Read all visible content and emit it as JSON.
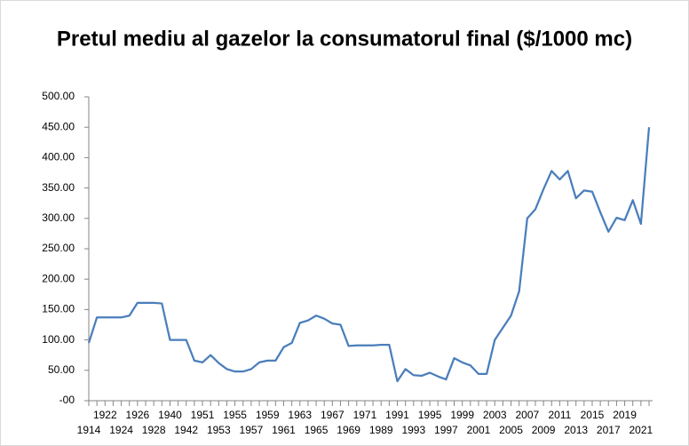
{
  "chart_data": {
    "type": "line",
    "title": "Pretul mediu al gazelor la consumatorul final ($/1000 mc)",
    "categories": [
      "1914",
      null,
      "1922",
      null,
      "1924",
      null,
      "1926",
      null,
      "1928",
      null,
      "1940",
      null,
      "1942",
      null,
      "1951",
      null,
      "1953",
      null,
      "1955",
      null,
      "1957",
      null,
      "1959",
      null,
      "1961",
      null,
      "1963",
      null,
      "1965",
      null,
      "1967",
      null,
      "1969",
      null,
      "1971",
      null,
      "1989",
      null,
      "1991",
      null,
      "1993",
      null,
      "1995",
      null,
      "1997",
      null,
      "1999",
      null,
      "2001",
      null,
      "2003",
      null,
      "2005",
      null,
      "2007",
      null,
      "2009",
      null,
      "2011",
      null,
      "2013",
      null,
      "2015",
      null,
      "2017",
      null,
      "2019",
      null,
      "2021",
      null
    ],
    "series": [
      {
        "color": "#4a7ebb",
        "values": [
          95,
          137,
          137,
          137,
          137,
          140,
          161,
          161,
          161,
          160,
          100,
          100,
          100,
          66,
          63,
          75,
          62,
          52,
          48,
          48,
          52,
          63,
          66,
          66,
          88,
          95,
          128,
          132,
          140,
          135,
          127,
          125,
          90,
          91,
          91,
          91,
          92,
          92,
          32,
          52,
          42,
          41,
          46,
          40,
          35,
          70,
          63,
          58,
          44,
          44,
          100,
          120,
          140,
          180,
          300,
          315,
          348,
          378,
          364,
          378,
          333,
          346,
          344,
          310,
          278,
          301,
          297,
          330,
          291,
          450
        ]
      }
    ],
    "ylim": [
      0,
      500
    ],
    "yticks": [
      {
        "value": 0,
        "label": "-00"
      },
      {
        "value": 50,
        "label": "50.00"
      },
      {
        "value": 100,
        "label": "100.00"
      },
      {
        "value": 150,
        "label": "150.00"
      },
      {
        "value": 200,
        "label": "200.00"
      },
      {
        "value": 250,
        "label": "250.00"
      },
      {
        "value": 300,
        "label": "300.00"
      },
      {
        "value": 350,
        "label": "350.00"
      },
      {
        "value": 400,
        "label": "400.00"
      },
      {
        "value": 450,
        "label": "450.00"
      },
      {
        "value": 500,
        "label": "500.00"
      }
    ],
    "grid": false
  }
}
